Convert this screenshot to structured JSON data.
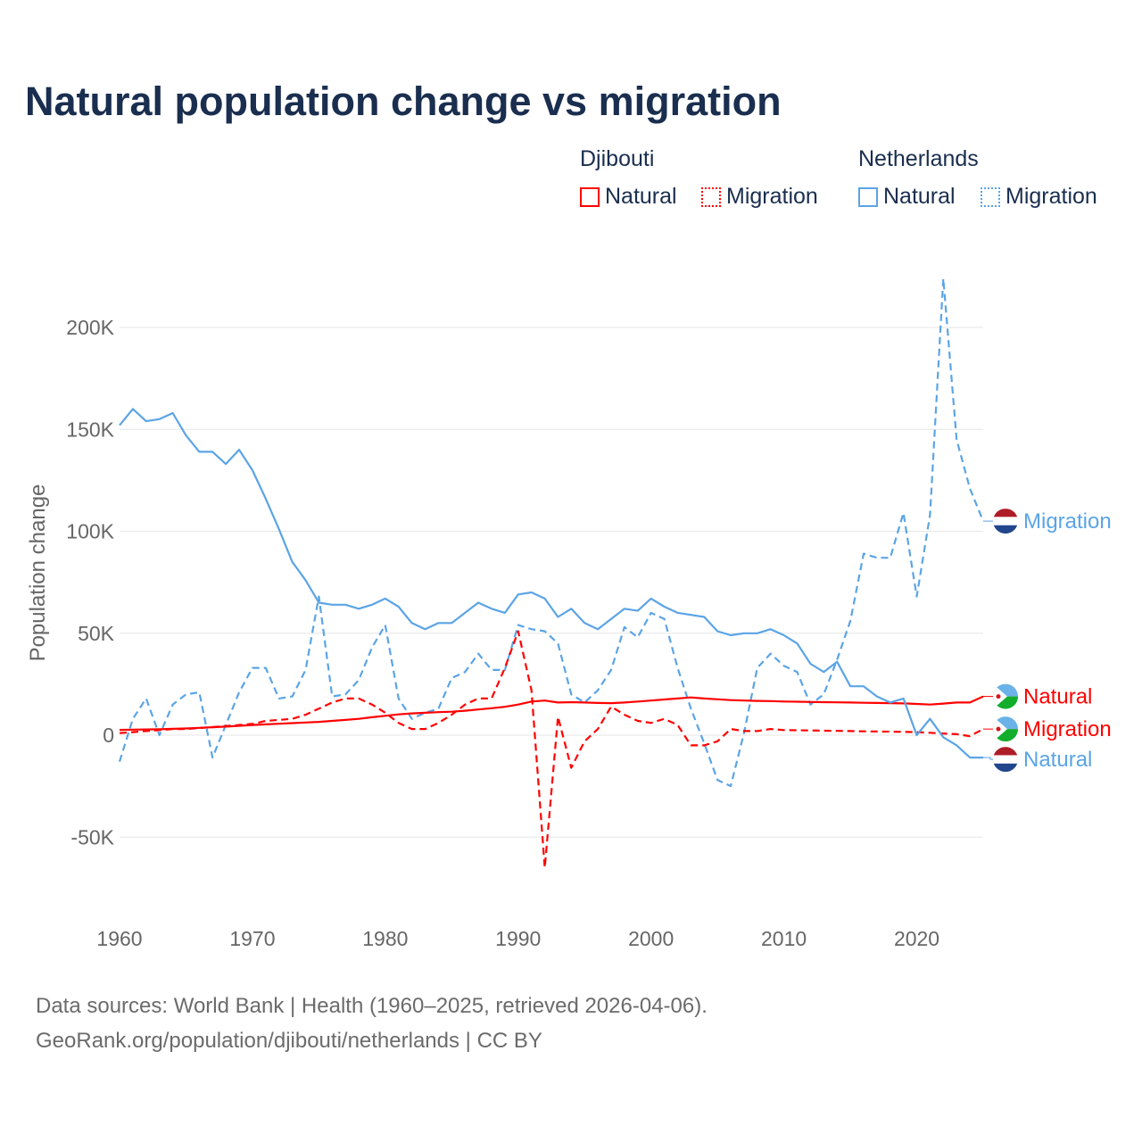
{
  "chart_data": {
    "type": "line",
    "title": "Natural population change vs migration",
    "xlabel": "",
    "ylabel": "Population change",
    "xlim": [
      1960,
      2025
    ],
    "ylim": [
      -65000,
      225000
    ],
    "x_ticks": [
      "1960",
      "1970",
      "1980",
      "1990",
      "2000",
      "2010",
      "2020"
    ],
    "y_ticks": [
      {
        "v": -50000,
        "label": "-50K"
      },
      {
        "v": 0,
        "label": "0"
      },
      {
        "v": 50000,
        "label": "50K"
      },
      {
        "v": 100000,
        "label": "100K"
      },
      {
        "v": 150000,
        "label": "150K"
      },
      {
        "v": 200000,
        "label": "200K"
      }
    ],
    "grid": true,
    "legend": {
      "placement": "top-right",
      "groups": [
        {
          "name": "Djibouti",
          "items": [
            "Natural",
            "Migration"
          ]
        },
        {
          "name": "Netherlands",
          "items": [
            "Natural",
            "Migration"
          ]
        }
      ]
    },
    "x": [
      1960,
      1961,
      1962,
      1963,
      1964,
      1965,
      1966,
      1967,
      1968,
      1969,
      1970,
      1971,
      1972,
      1973,
      1974,
      1975,
      1976,
      1977,
      1978,
      1979,
      1980,
      1981,
      1982,
      1983,
      1984,
      1985,
      1986,
      1987,
      1988,
      1989,
      1990,
      1991,
      1992,
      1993,
      1994,
      1995,
      1996,
      1997,
      1998,
      1999,
      2000,
      2001,
      2002,
      2003,
      2004,
      2005,
      2006,
      2007,
      2008,
      2009,
      2010,
      2011,
      2012,
      2013,
      2014,
      2015,
      2016,
      2017,
      2018,
      2019,
      2020,
      2021,
      2022,
      2023,
      2024,
      2025
    ],
    "series": [
      {
        "name": "Netherlands Migration",
        "country": "Netherlands",
        "kind": "Migration",
        "color": "#5ba4e6",
        "dashed": true,
        "label": "Migration",
        "values": [
          -13000,
          8000,
          18000,
          0,
          15000,
          20000,
          21000,
          -11000,
          5000,
          21000,
          33000,
          33000,
          18000,
          19000,
          32000,
          68000,
          19000,
          20000,
          27000,
          43000,
          54000,
          18000,
          8000,
          11000,
          13000,
          28000,
          31000,
          40000,
          32000,
          32000,
          54000,
          52000,
          51000,
          45000,
          20000,
          16000,
          22000,
          32000,
          53000,
          48000,
          60000,
          57000,
          33000,
          13000,
          -4000,
          -22000,
          -25000,
          1000,
          33000,
          40000,
          34000,
          31000,
          15000,
          20000,
          37000,
          56000,
          89000,
          87000,
          87000,
          109000,
          68000,
          108000,
          224000,
          145000,
          121000,
          105000
        ]
      },
      {
        "name": "Djibouti Natural",
        "country": "Djibouti",
        "kind": "Natural",
        "color": "#ff0000",
        "dashed": false,
        "label": "Natural",
        "values": [
          2600,
          2700,
          2800,
          2900,
          3100,
          3300,
          3600,
          3900,
          4200,
          4600,
          5000,
          5300,
          5600,
          5900,
          6200,
          6500,
          7000,
          7500,
          8000,
          8800,
          9500,
          10200,
          10700,
          11000,
          11300,
          11500,
          12000,
          12600,
          13200,
          13900,
          15000,
          16500,
          17000,
          16000,
          16200,
          16000,
          15800,
          15700,
          16000,
          16500,
          17000,
          17500,
          18000,
          18500,
          18000,
          17600,
          17200,
          17000,
          16800,
          16700,
          16500,
          16400,
          16300,
          16200,
          16100,
          16000,
          15900,
          15800,
          15700,
          15600,
          15300,
          15000,
          15500,
          16000,
          16000,
          19000
        ]
      },
      {
        "name": "Djibouti Migration",
        "country": "Djibouti",
        "kind": "Migration",
        "color": "#ff0000",
        "dashed": true,
        "label": "Migration",
        "values": [
          1000,
          1500,
          2000,
          2500,
          3000,
          3000,
          3500,
          4000,
          4500,
          5000,
          5500,
          7000,
          7500,
          8000,
          10000,
          13000,
          16000,
          18000,
          18000,
          15000,
          11000,
          6000,
          3000,
          3000,
          6000,
          10000,
          15000,
          18000,
          18000,
          33000,
          51000,
          22000,
          -65000,
          9000,
          -16000,
          -3000,
          3000,
          14000,
          10000,
          7000,
          6000,
          8000,
          5000,
          -5000,
          -5000,
          -3000,
          3000,
          2000,
          2000,
          3000,
          2500,
          2400,
          2300,
          2200,
          2100,
          2000,
          1900,
          1800,
          1700,
          1600,
          1500,
          1200,
          800,
          500,
          -500,
          3000
        ]
      },
      {
        "name": "Netherlands Natural",
        "country": "Netherlands",
        "kind": "Natural",
        "color": "#5ba4e6",
        "dashed": false,
        "label": "Natural",
        "values": [
          152000,
          160000,
          154000,
          155000,
          158000,
          147000,
          139000,
          139000,
          133000,
          140000,
          130000,
          116000,
          101000,
          85000,
          76000,
          65000,
          64000,
          64000,
          62000,
          64000,
          67000,
          63000,
          55000,
          52000,
          55000,
          55000,
          60000,
          65000,
          62000,
          60000,
          69000,
          70000,
          67000,
          58000,
          62000,
          55000,
          52000,
          57000,
          62000,
          61000,
          67000,
          63000,
          60000,
          59000,
          58000,
          51000,
          49000,
          50000,
          50000,
          52000,
          49000,
          45000,
          35000,
          31000,
          36000,
          24000,
          24000,
          19000,
          16000,
          18000,
          0,
          8000,
          -1000,
          -5000,
          -11000,
          -11000
        ]
      }
    ]
  },
  "source_lines": [
    "Data sources: World Bank | Health (1960–2025, retrieved 2026-04-06).",
    "GeoRank.org/population/djibouti/netherlands | CC BY"
  ]
}
